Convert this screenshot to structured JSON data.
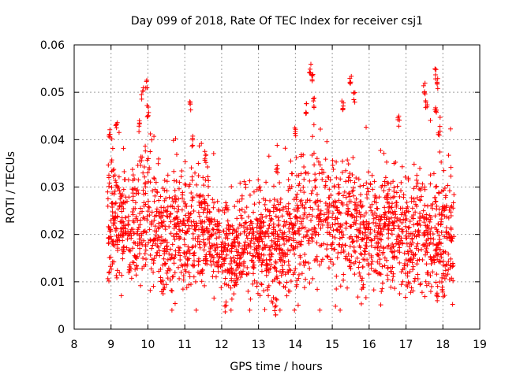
{
  "chart_data": {
    "type": "scatter",
    "title": "Day 099 of 2018, Rate Of TEC Index for receiver csj1",
    "xlabel": "GPS time / hours",
    "ylabel": "ROTI / TECUs",
    "xlim": [
      8,
      19
    ],
    "ylim": [
      0,
      0.06
    ],
    "xticks": [
      8,
      9,
      10,
      11,
      12,
      13,
      14,
      15,
      16,
      17,
      18,
      19
    ],
    "yticks": [
      "0",
      "0.01",
      "0.02",
      "0.03",
      "0.04",
      "0.05",
      "0.06"
    ],
    "grid": true,
    "marker": "+",
    "marker_color": "#ff0000",
    "series": [
      {
        "name": "ROTI",
        "x_range": [
          8.9,
          18.3
        ],
        "profile": [
          {
            "x": 9.0,
            "mean": 0.023,
            "spread": 0.006
          },
          {
            "x": 9.5,
            "mean": 0.022,
            "spread": 0.006
          },
          {
            "x": 10.0,
            "mean": 0.025,
            "spread": 0.008
          },
          {
            "x": 10.5,
            "mean": 0.019,
            "spread": 0.006
          },
          {
            "x": 11.0,
            "mean": 0.02,
            "spread": 0.006
          },
          {
            "x": 11.5,
            "mean": 0.022,
            "spread": 0.006
          },
          {
            "x": 12.0,
            "mean": 0.016,
            "spread": 0.004
          },
          {
            "x": 12.5,
            "mean": 0.017,
            "spread": 0.005
          },
          {
            "x": 13.0,
            "mean": 0.018,
            "spread": 0.005
          },
          {
            "x": 13.5,
            "mean": 0.017,
            "spread": 0.006
          },
          {
            "x": 14.0,
            "mean": 0.02,
            "spread": 0.006
          },
          {
            "x": 14.5,
            "mean": 0.024,
            "spread": 0.007
          },
          {
            "x": 15.0,
            "mean": 0.025,
            "spread": 0.007
          },
          {
            "x": 15.5,
            "mean": 0.021,
            "spread": 0.007
          },
          {
            "x": 16.0,
            "mean": 0.02,
            "spread": 0.006
          },
          {
            "x": 16.5,
            "mean": 0.021,
            "spread": 0.006
          },
          {
            "x": 17.0,
            "mean": 0.019,
            "spread": 0.006
          },
          {
            "x": 17.5,
            "mean": 0.019,
            "spread": 0.006
          },
          {
            "x": 18.0,
            "mean": 0.019,
            "spread": 0.007
          },
          {
            "x": 18.3,
            "mean": 0.02,
            "spread": 0.006
          }
        ],
        "peaks": [
          {
            "x": 8.95,
            "y": 0.043
          },
          {
            "x": 9.15,
            "y": 0.044
          },
          {
            "x": 9.75,
            "y": 0.044
          },
          {
            "x": 9.85,
            "y": 0.051
          },
          {
            "x": 9.95,
            "y": 0.053
          },
          {
            "x": 10.0,
            "y": 0.047
          },
          {
            "x": 11.15,
            "y": 0.048
          },
          {
            "x": 11.2,
            "y": 0.041
          },
          {
            "x": 11.55,
            "y": 0.037
          },
          {
            "x": 13.45,
            "y": 0.005
          },
          {
            "x": 13.5,
            "y": 0.035
          },
          {
            "x": 14.0,
            "y": 0.043
          },
          {
            "x": 14.3,
            "y": 0.048
          },
          {
            "x": 14.4,
            "y": 0.056
          },
          {
            "x": 14.45,
            "y": 0.054
          },
          {
            "x": 14.5,
            "y": 0.049
          },
          {
            "x": 15.3,
            "y": 0.048
          },
          {
            "x": 15.5,
            "y": 0.054
          },
          {
            "x": 15.6,
            "y": 0.05
          },
          {
            "x": 16.8,
            "y": 0.045
          },
          {
            "x": 17.5,
            "y": 0.052
          },
          {
            "x": 17.55,
            "y": 0.049
          },
          {
            "x": 17.8,
            "y": 0.055
          },
          {
            "x": 17.85,
            "y": 0.053
          },
          {
            "x": 17.8,
            "y": 0.047
          },
          {
            "x": 17.9,
            "y": 0.043
          },
          {
            "x": 12.1,
            "y": 0.006
          },
          {
            "x": 17.85,
            "y": 0.008
          },
          {
            "x": 18.0,
            "y": 0.009
          }
        ]
      }
    ]
  }
}
